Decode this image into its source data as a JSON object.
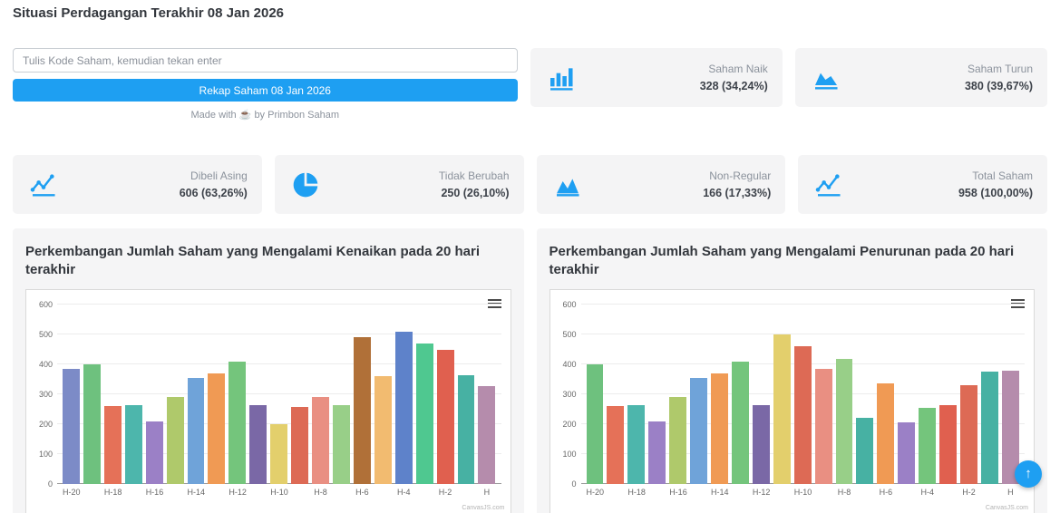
{
  "page": {
    "title": "Situasi Perdagangan Terakhir 08 Jan 2026"
  },
  "search": {
    "placeholder": "Tulis Kode Saham, kemudian tekan enter",
    "button_label": "Rekap Saham 08 Jan 2026",
    "credit": "Made with ☕ by Primbon Saham"
  },
  "stats": [
    {
      "label": "Saham Naik",
      "value": "328 (34,24%)",
      "icon": "bar-chart-icon"
    },
    {
      "label": "Saham Turun",
      "value": "380 (39,67%)",
      "icon": "area-chart-down-icon"
    },
    {
      "label": "Dibeli Asing",
      "value": "606 (63,26%)",
      "icon": "line-chart-icon"
    },
    {
      "label": "Tidak Berubah",
      "value": "250 (26,10%)",
      "icon": "pie-chart-icon"
    },
    {
      "label": "Non-Regular",
      "value": "166 (17,33%)",
      "icon": "area-chart-icon"
    },
    {
      "label": "Total Saham",
      "value": "958 (100,00%)",
      "icon": "line-chart-icon"
    }
  ],
  "colors": {
    "accent": "#1E9FF2"
  },
  "fab": {
    "icon": "arrow-up-icon",
    "glyph": "↑"
  },
  "chart_data": [
    {
      "type": "bar",
      "title": "Perkembangan Jumlah Saham yang Mengalami Kenaikan pada 20 hari terakhir",
      "xlabel": "",
      "ylabel": "",
      "ylim": [
        0,
        600
      ],
      "ytick_interval": 100,
      "grid": true,
      "legend": false,
      "watermark": "CanvasJS.com",
      "labels": [
        "H-20",
        "",
        "H-18",
        "",
        "H-16",
        "",
        "H-14",
        "",
        "H-12",
        "",
        "H-10",
        "",
        "H-8",
        "",
        "H-6",
        "",
        "H-4",
        "",
        "H-2",
        "",
        "H"
      ],
      "values": [
        385,
        400,
        260,
        265,
        210,
        290,
        355,
        370,
        410,
        265,
        200,
        258,
        290,
        265,
        490,
        360,
        510,
        470,
        450,
        365,
        328
      ],
      "colors": [
        "#7C8BC7",
        "#6EC17E",
        "#E57158",
        "#4DB6AC",
        "#9B80C6",
        "#AFC96B",
        "#6FA3D9",
        "#F09A54",
        "#74C57C",
        "#7A68A6",
        "#E3CF6C",
        "#DD6A55",
        "#E98F82",
        "#98CF88",
        "#B07038",
        "#F2BB70",
        "#5E82CA",
        "#4FC890",
        "#E0604F",
        "#47B1A3",
        "#B58CAC"
      ]
    },
    {
      "type": "bar",
      "title": "Perkembangan Jumlah Saham yang Mengalami Penurunan pada 20 hari terakhir",
      "xlabel": "",
      "ylabel": "",
      "ylim": [
        0,
        600
      ],
      "ytick_interval": 100,
      "grid": true,
      "legend": false,
      "watermark": "CanvasJS.com",
      "labels": [
        "H-20",
        "",
        "H-18",
        "",
        "H-16",
        "",
        "H-14",
        "",
        "H-12",
        "",
        "H-10",
        "",
        "H-8",
        "",
        "H-6",
        "",
        "H-4",
        "",
        "H-2",
        "",
        "H"
      ],
      "values": [
        400,
        262,
        265,
        210,
        290,
        355,
        370,
        408,
        265,
        500,
        460,
        385,
        418,
        220,
        335,
        205,
        255,
        265,
        330,
        375,
        380
      ],
      "colors": [
        "#6EC17E",
        "#E57158",
        "#4DB6AC",
        "#9B80C6",
        "#AFC96B",
        "#6FA3D9",
        "#F09A54",
        "#74C57C",
        "#7A68A6",
        "#E3CF6C",
        "#DD6A55",
        "#E98F82",
        "#98CF88",
        "#47B1A3",
        "#F09A54",
        "#9B80C6",
        "#74C57C",
        "#E0604F",
        "#DD6A55",
        "#47B1A3",
        "#B58CAC"
      ]
    }
  ]
}
